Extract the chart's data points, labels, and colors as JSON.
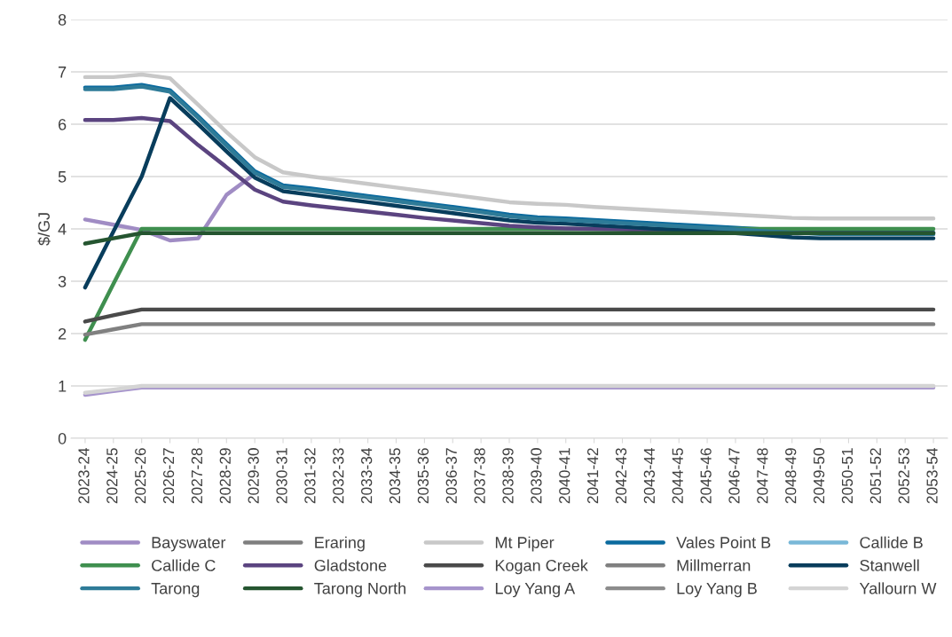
{
  "chart_data": {
    "type": "line",
    "ylabel": "$/GJ",
    "ylim": [
      0,
      8
    ],
    "yticks": [
      0,
      1,
      2,
      3,
      4,
      5,
      6,
      7,
      8
    ],
    "grid": "y",
    "legend": "bottom",
    "marker": "none",
    "line_style": "solid",
    "categories": [
      "2023-24",
      "2024-25",
      "2025-26",
      "2026-27",
      "2027-28",
      "2028-29",
      "2029-30",
      "2030-31",
      "2031-32",
      "2032-33",
      "2033-34",
      "2034-35",
      "2035-36",
      "2036-37",
      "2037-38",
      "2038-39",
      "2039-40",
      "2040-41",
      "2041-42",
      "2042-43",
      "2043-44",
      "2044-45",
      "2045-46",
      "2046-47",
      "2047-48",
      "2048-49",
      "2049-50",
      "2050-51",
      "2051-52",
      "2052-53",
      "2053-54"
    ],
    "series": [
      {
        "name": "Bayswater",
        "color": "#a08cc4",
        "values": [
          4.18,
          4.08,
          3.98,
          3.78,
          3.82,
          4.65,
          5.05,
          null,
          null,
          null,
          null,
          null,
          null,
          null,
          null,
          null,
          null,
          null,
          null,
          null,
          null,
          null,
          null,
          null,
          null,
          null,
          null,
          null,
          null,
          null,
          null
        ]
      },
      {
        "name": "Eraring",
        "color": "#7f7f7f",
        "values": [
          null,
          null,
          null,
          null,
          null,
          null,
          null,
          null,
          null,
          null,
          null,
          null,
          null,
          null,
          null,
          null,
          null,
          null,
          null,
          null,
          null,
          null,
          null,
          null,
          null,
          null,
          null,
          null,
          null,
          null,
          null
        ]
      },
      {
        "name": "Mt Piper",
        "color": "#c8c8c8",
        "values": [
          6.9,
          6.9,
          6.95,
          6.88,
          6.37,
          5.85,
          5.37,
          5.08,
          5.0,
          4.93,
          4.86,
          4.79,
          4.72,
          4.65,
          4.58,
          4.51,
          4.48,
          4.46,
          4.42,
          4.39,
          4.36,
          4.33,
          4.3,
          4.27,
          4.24,
          4.21,
          4.2,
          4.2,
          4.2,
          4.2,
          4.2
        ]
      },
      {
        "name": "Vales Point B",
        "color": "#0b6a9e",
        "values": [
          6.7,
          6.7,
          6.75,
          6.65,
          6.15,
          5.62,
          5.1,
          4.83,
          4.77,
          4.7,
          4.63,
          4.56,
          4.49,
          4.42,
          4.35,
          4.27,
          4.22,
          4.2,
          4.17,
          4.14,
          4.11,
          4.08,
          4.05,
          4.02,
          3.99,
          3.96,
          3.93,
          3.93,
          3.93,
          3.93,
          3.93
        ]
      },
      {
        "name": "Callide B",
        "color": "#79b8d8",
        "values": [
          null,
          null,
          null,
          null,
          null,
          null,
          null,
          null,
          null,
          null,
          null,
          null,
          null,
          null,
          null,
          null,
          null,
          null,
          null,
          null,
          null,
          null,
          null,
          null,
          null,
          null,
          null,
          null,
          null,
          null,
          null
        ]
      },
      {
        "name": "Callide C",
        "color": "#3f8f4f",
        "values": [
          1.88,
          2.95,
          4.0,
          4.0,
          4.0,
          4.0,
          4.0,
          4.0,
          4.0,
          4.0,
          4.0,
          4.0,
          4.0,
          4.0,
          4.0,
          4.0,
          4.0,
          4.0,
          4.0,
          4.0,
          4.0,
          4.0,
          4.0,
          4.0,
          4.0,
          4.0,
          4.0,
          4.0,
          4.0,
          4.0,
          4.0
        ]
      },
      {
        "name": "Gladstone",
        "color": "#5b4480",
        "values": [
          6.08,
          6.08,
          6.12,
          6.06,
          5.6,
          5.18,
          4.75,
          4.52,
          4.45,
          4.39,
          4.33,
          4.27,
          4.21,
          4.16,
          4.11,
          4.06,
          4.03,
          4.01,
          4.0,
          3.99,
          3.98,
          3.97,
          3.96,
          3.95,
          3.94,
          3.93,
          3.92,
          3.92,
          3.92,
          3.92,
          3.92
        ]
      },
      {
        "name": "Kogan Creek",
        "color": "#4a4a4a",
        "values": [
          2.23,
          2.35,
          2.46,
          2.46,
          2.46,
          2.46,
          2.46,
          2.46,
          2.46,
          2.46,
          2.46,
          2.46,
          2.46,
          2.46,
          2.46,
          2.46,
          2.46,
          2.46,
          2.46,
          2.46,
          2.46,
          2.46,
          2.46,
          2.46,
          2.46,
          2.46,
          2.46,
          2.46,
          2.46,
          2.46,
          2.46
        ]
      },
      {
        "name": "Millmerran",
        "color": "#808080",
        "values": [
          1.98,
          2.08,
          2.18,
          2.18,
          2.18,
          2.18,
          2.18,
          2.18,
          2.18,
          2.18,
          2.18,
          2.18,
          2.18,
          2.18,
          2.18,
          2.18,
          2.18,
          2.18,
          2.18,
          2.18,
          2.18,
          2.18,
          2.18,
          2.18,
          2.18,
          2.18,
          2.18,
          2.18,
          2.18,
          2.18,
          2.18
        ]
      },
      {
        "name": "Stanwell",
        "color": "#083d5c",
        "values": [
          2.88,
          3.95,
          5.0,
          6.5,
          6.0,
          5.48,
          4.98,
          4.72,
          4.65,
          4.58,
          4.51,
          4.44,
          4.37,
          4.3,
          4.23,
          4.16,
          4.12,
          4.1,
          4.07,
          4.04,
          4.01,
          3.98,
          3.95,
          3.92,
          3.88,
          3.84,
          3.82,
          3.82,
          3.82,
          3.82,
          3.82
        ]
      },
      {
        "name": "Tarong",
        "color": "#2e7b98",
        "values": [
          6.67,
          6.67,
          6.72,
          6.62,
          6.12,
          5.59,
          5.07,
          4.8,
          4.74,
          4.67,
          4.6,
          4.53,
          4.46,
          4.39,
          4.32,
          4.24,
          4.19,
          4.17,
          4.14,
          4.11,
          4.08,
          4.05,
          4.02,
          3.99,
          3.96,
          3.93,
          3.9,
          3.9,
          3.9,
          3.9,
          3.9
        ]
      },
      {
        "name": "Tarong North",
        "color": "#255530",
        "values": [
          3.72,
          3.82,
          3.92,
          3.92,
          3.92,
          3.92,
          3.92,
          3.92,
          3.92,
          3.92,
          3.92,
          3.92,
          3.92,
          3.92,
          3.92,
          3.92,
          3.92,
          3.92,
          3.92,
          3.92,
          3.92,
          3.92,
          3.92,
          3.92,
          3.92,
          3.92,
          3.92,
          3.92,
          3.92,
          3.92,
          3.92
        ]
      },
      {
        "name": "Loy Yang A",
        "color": "#a694cc",
        "values": [
          0.83,
          0.9,
          0.97,
          0.97,
          0.97,
          0.97,
          0.97,
          0.97,
          0.97,
          0.97,
          0.97,
          0.97,
          0.97,
          0.97,
          0.97,
          0.97,
          0.97,
          0.97,
          0.97,
          0.97,
          0.97,
          0.97,
          0.97,
          0.97,
          0.97,
          0.97,
          0.97,
          0.97,
          0.97,
          0.97,
          0.97
        ]
      },
      {
        "name": "Loy Yang B",
        "color": "#8c8c8c",
        "values": [
          null,
          null,
          null,
          null,
          null,
          null,
          null,
          null,
          null,
          null,
          null,
          null,
          null,
          null,
          null,
          null,
          null,
          null,
          null,
          null,
          null,
          null,
          null,
          null,
          null,
          null,
          null,
          null,
          null,
          null,
          null
        ]
      },
      {
        "name": "Yallourn W",
        "color": "#d4d4d4",
        "values": [
          0.87,
          0.93,
          1.0,
          1.0,
          1.0,
          1.0,
          1.0,
          1.0,
          1.0,
          1.0,
          1.0,
          1.0,
          1.0,
          1.0,
          1.0,
          1.0,
          1.0,
          1.0,
          1.0,
          1.0,
          1.0,
          1.0,
          1.0,
          1.0,
          1.0,
          1.0,
          1.0,
          1.0,
          1.0,
          1.0,
          1.0
        ]
      }
    ]
  }
}
